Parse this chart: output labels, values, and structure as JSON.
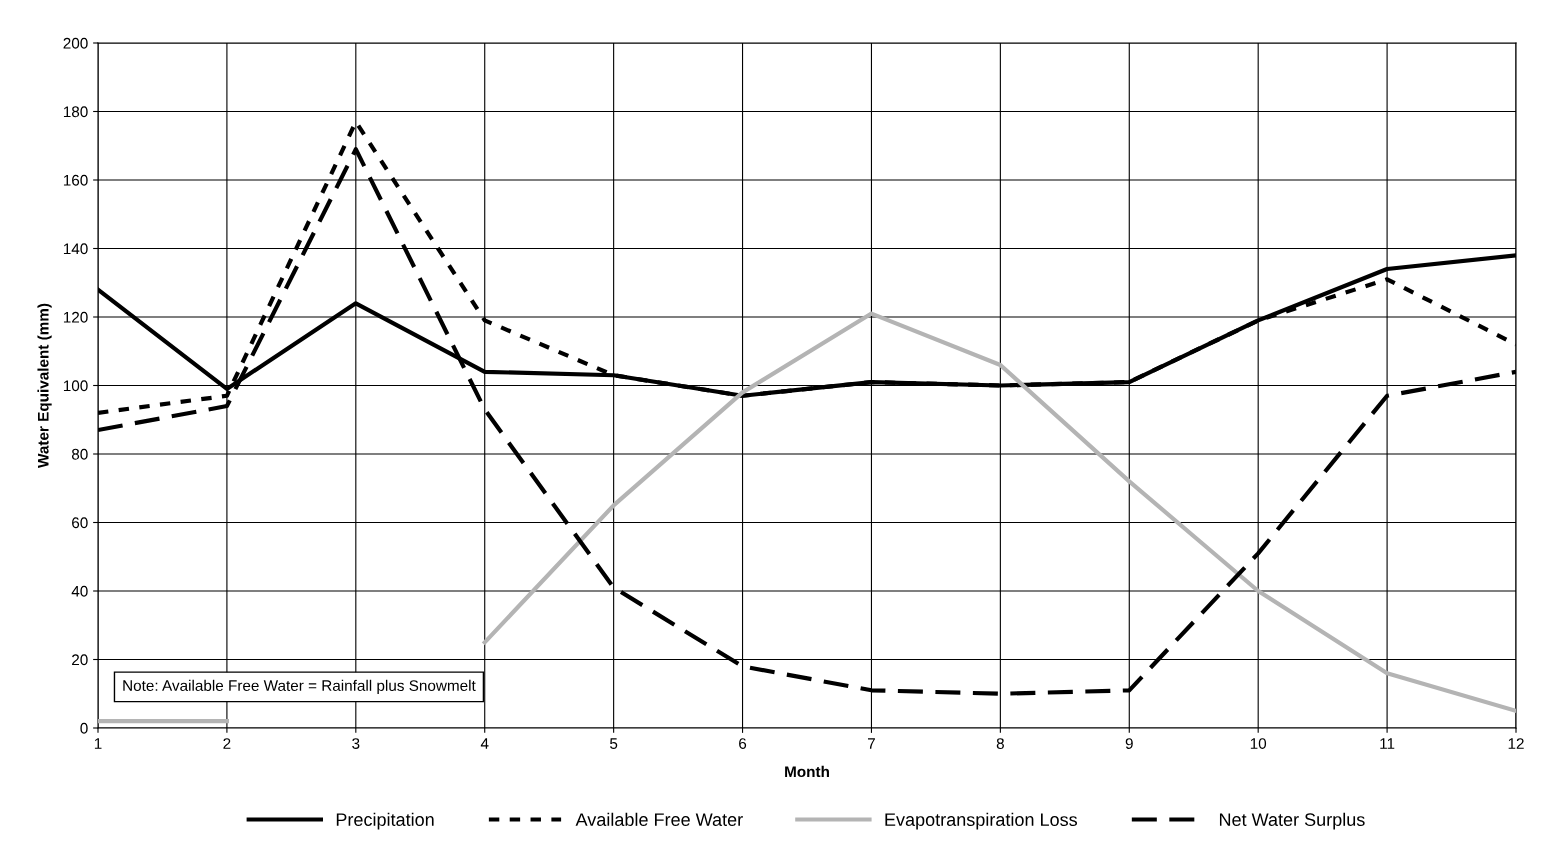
{
  "chart_data": {
    "type": "line",
    "xlabel": "Month",
    "ylabel": "Water Equivalent (mm)",
    "x": [
      1,
      2,
      3,
      4,
      5,
      6,
      7,
      8,
      9,
      10,
      11,
      12
    ],
    "series": [
      {
        "name": "Precipitation",
        "color": "#000000",
        "line_style": "solid",
        "values": [
          128,
          99,
          124,
          104,
          103,
          97,
          101,
          100,
          101,
          119,
          134,
          138
        ]
      },
      {
        "name": "Available Free Water",
        "color": "#000000",
        "line_style": "dotted",
        "values": [
          92,
          97,
          177,
          119,
          103,
          97,
          101,
          100,
          101,
          119,
          131,
          112
        ]
      },
      {
        "name": "Evapotranspiration Loss",
        "color": "#b4b4b4",
        "line_style": "solid",
        "values": [
          2,
          2,
          null,
          25,
          65,
          98,
          121,
          106,
          72,
          40,
          16,
          5
        ]
      },
      {
        "name": "Net Water Surplus",
        "color": "#000000",
        "line_style": "dashed",
        "values": [
          87,
          94,
          169,
          93,
          41,
          18,
          11,
          10,
          11,
          51,
          97,
          104
        ]
      }
    ],
    "xlim": [
      1,
      12
    ],
    "xticks": [
      1,
      2,
      3,
      4,
      5,
      6,
      7,
      8,
      9,
      10,
      11,
      12
    ],
    "ylim": [
      0,
      200
    ],
    "yticks": [
      0,
      20,
      40,
      60,
      80,
      100,
      120,
      140,
      160,
      180,
      200
    ],
    "grid": true,
    "legend": "bottom",
    "marker": "none",
    "annotations": [
      "Note: Available Free Water = Rainfall plus Snowmelt"
    ]
  }
}
